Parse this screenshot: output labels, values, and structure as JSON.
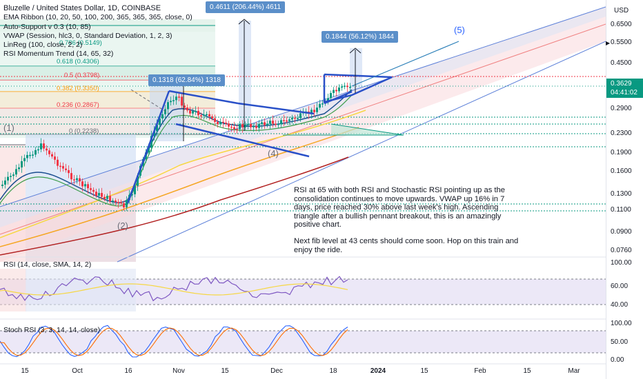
{
  "legend": {
    "title": "Bluzelle / United States Dollar, 1D, COINBASE",
    "indicators": [
      "EMA Ribbon (10, 20, 50, 100, 200, 365, 365, 365, close, 0)",
      "Auto-Support v 0.3 (10, 85)",
      "VWAP (Session, hlc3, 0, Standard Deviation, 1, 2, 3)",
      "LinReg (100, close, 2, 2)",
      "RSI Momentum Trend (14, 65, 32)"
    ]
  },
  "rsi_pane": {
    "label": "RSI (14, close, SMA, 14, 2)"
  },
  "stoch_pane": {
    "label": "Stoch RSI (3, 3, 14, 14, close)"
  },
  "currency": "USD",
  "price_ticks": [
    "0.6500",
    "0.5500",
    "0.4500",
    "0.3629",
    "0.2900",
    "0.2300",
    "0.1900",
    "0.1600",
    "0.1300",
    "0.1100",
    "0.0900",
    "0.0760"
  ],
  "price_tag": {
    "price": "0.3629",
    "countdown": "04:41:02",
    "color": "#089981"
  },
  "rsi_ticks": [
    "100.00",
    "60.00",
    "40.00"
  ],
  "stoch_ticks": [
    "100.00",
    "50.00",
    "0.00"
  ],
  "time_ticks": [
    "15",
    "Oct",
    "16",
    "Nov",
    "15",
    "Dec",
    "18",
    "2024",
    "15",
    "Feb",
    "15",
    "Mar"
  ],
  "fib_levels": [
    {
      "label": "0.786 (0.5149)",
      "color": "#089981"
    },
    {
      "label": "0.618 (0.4306)",
      "color": "#089981"
    },
    {
      "label": "0.5 (0.3798)",
      "color": "#f23645"
    },
    {
      "label": "0.382 (0.3350)",
      "color": "#ff9800"
    },
    {
      "label": "0.236 (0.2867)",
      "color": "#f23645"
    },
    {
      "label": "0 (0.2238)",
      "color": "#6a6d78"
    }
  ],
  "measurements": [
    "0.4611 (206.44%) 4611",
    "0.1844 (56.12%) 1844",
    "0.1318 (62.84%) 1318"
  ],
  "waves": [
    "(1)",
    "(2)",
    "(4)",
    "(5)"
  ],
  "note": {
    "paragraph1": "RSI at 65 with both RSI and Stochastic RSI pointing up as the consolidation continues to move upwards. VWAP up 16% in 7 days, price reached 30% above last week's high. Ascending triangle after a bullish pennant breakout, this is an amazingly positive chart.",
    "paragraph2": "Next fib level at 43 cents should come soon. Hop on this train and enjoy the ride."
  },
  "colors": {
    "up": "#089981",
    "down": "#f23645",
    "trendline": "#2962ff",
    "measure_box": "#5b8fc9"
  }
}
